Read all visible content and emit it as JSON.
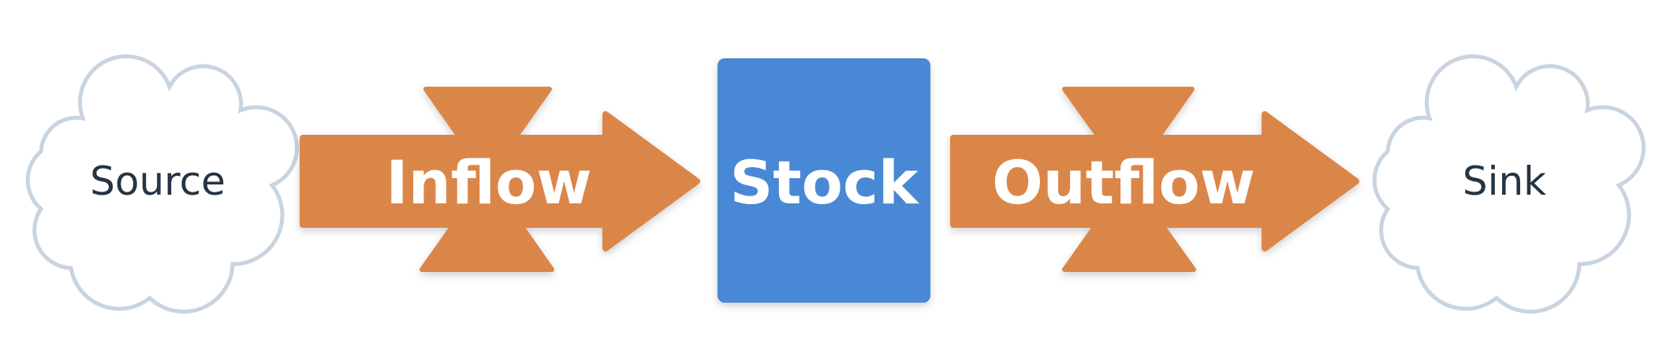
{
  "diagram": {
    "source": {
      "label": "Source"
    },
    "inflow": {
      "label": "Inflow"
    },
    "stock": {
      "label": "Stock"
    },
    "outflow": {
      "label": "Outflow"
    },
    "sink": {
      "label": "Sink"
    }
  },
  "colors": {
    "flow": "#db864a",
    "stock": "#4a88d4",
    "cloud_stroke": "#c8d4e0",
    "cloud_text": "#253444"
  }
}
